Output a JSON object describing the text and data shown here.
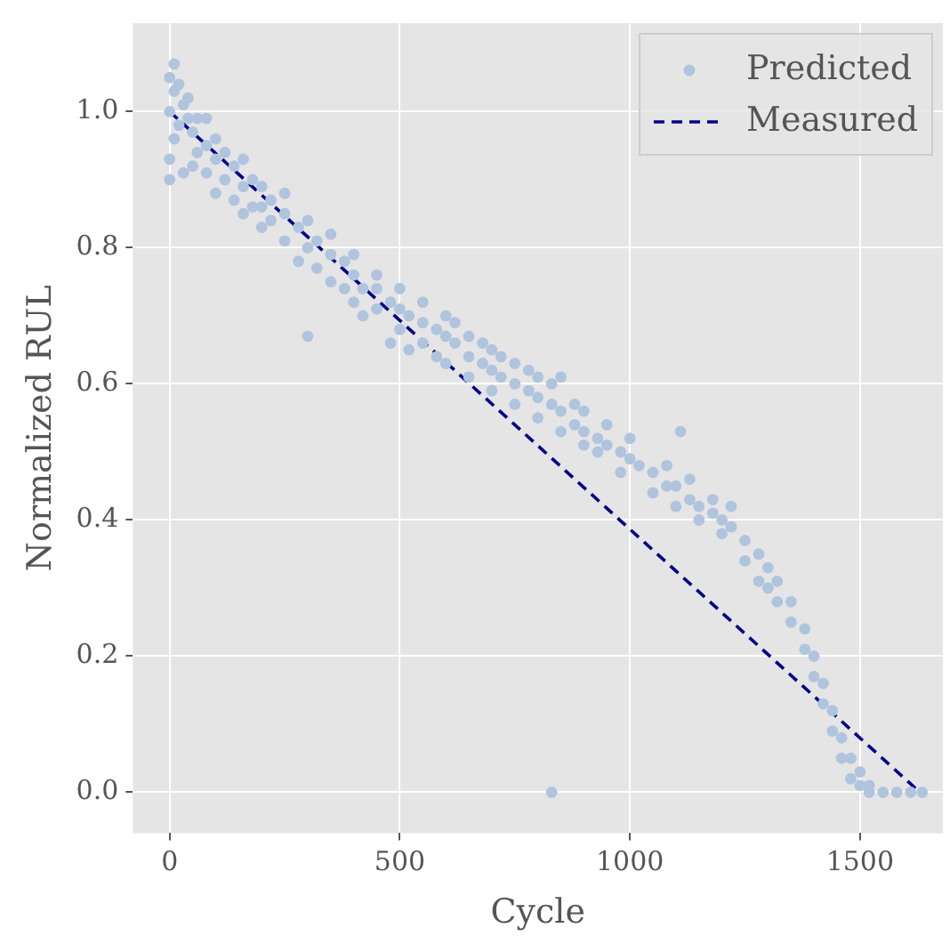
{
  "chart_data": {
    "type": "scatter",
    "xlabel": "Cycle",
    "ylabel": "Normalized RUL",
    "xlim": [
      -80,
      1680
    ],
    "ylim": [
      -0.06,
      1.13
    ],
    "xticks": [
      0,
      500,
      1000,
      1500
    ],
    "yticks": [
      {
        "value": 0,
        "label": "0.0"
      },
      0.2,
      0.4,
      0.6,
      0.8,
      {
        "value": 1,
        "label": "1.0"
      }
    ],
    "grid": true,
    "legend": "top right",
    "series": [
      {
        "name": "Predicted",
        "color": "#b0c4de",
        "marker": "circle",
        "x": [
          0,
          0,
          0,
          0,
          10,
          10,
          10,
          20,
          20,
          30,
          30,
          40,
          40,
          50,
          50,
          60,
          60,
          80,
          80,
          80,
          100,
          100,
          100,
          120,
          120,
          140,
          140,
          160,
          160,
          160,
          180,
          180,
          200,
          200,
          200,
          220,
          220,
          250,
          250,
          250,
          280,
          280,
          300,
          300,
          300,
          320,
          320,
          350,
          350,
          350,
          380,
          380,
          400,
          400,
          400,
          420,
          420,
          450,
          450,
          450,
          480,
          480,
          500,
          500,
          500,
          520,
          520,
          550,
          550,
          550,
          580,
          580,
          600,
          600,
          600,
          620,
          620,
          650,
          650,
          650,
          680,
          680,
          700,
          700,
          700,
          720,
          720,
          750,
          750,
          750,
          780,
          780,
          800,
          800,
          800,
          830,
          830,
          830,
          850,
          850,
          850,
          880,
          880,
          900,
          900,
          900,
          930,
          930,
          950,
          950,
          980,
          980,
          1000,
          1000,
          1020,
          1050,
          1050,
          1080,
          1080,
          1100,
          1100,
          1110,
          1130,
          1130,
          1150,
          1150,
          1180,
          1180,
          1200,
          1200,
          1220,
          1220,
          1250,
          1250,
          1280,
          1280,
          1300,
          1300,
          1320,
          1320,
          1350,
          1350,
          1380,
          1380,
          1400,
          1400,
          1420,
          1420,
          1440,
          1440,
          1460,
          1460,
          1480,
          1480,
          1500,
          1500,
          1520,
          1520,
          1550,
          1580,
          1610,
          1635
        ],
        "values": [
          1.05,
          1.0,
          0.93,
          0.9,
          1.07,
          1.03,
          0.96,
          1.04,
          0.98,
          1.01,
          0.91,
          0.99,
          1.02,
          0.97,
          0.92,
          0.99,
          0.94,
          0.95,
          0.91,
          0.99,
          0.93,
          0.88,
          0.96,
          0.94,
          0.9,
          0.92,
          0.87,
          0.89,
          0.85,
          0.93,
          0.9,
          0.86,
          0.86,
          0.83,
          0.89,
          0.87,
          0.84,
          0.85,
          0.81,
          0.88,
          0.83,
          0.78,
          0.8,
          0.67,
          0.84,
          0.81,
          0.77,
          0.79,
          0.75,
          0.82,
          0.78,
          0.74,
          0.76,
          0.79,
          0.72,
          0.74,
          0.7,
          0.74,
          0.71,
          0.76,
          0.72,
          0.66,
          0.71,
          0.68,
          0.74,
          0.7,
          0.65,
          0.69,
          0.66,
          0.72,
          0.68,
          0.64,
          0.67,
          0.63,
          0.7,
          0.66,
          0.69,
          0.64,
          0.61,
          0.67,
          0.63,
          0.66,
          0.62,
          0.59,
          0.65,
          0.61,
          0.64,
          0.6,
          0.57,
          0.63,
          0.59,
          0.62,
          0.58,
          0.55,
          0.61,
          0.57,
          0.0,
          0.6,
          0.56,
          0.61,
          0.53,
          0.54,
          0.57,
          0.53,
          0.51,
          0.56,
          0.52,
          0.5,
          0.51,
          0.54,
          0.5,
          0.47,
          0.49,
          0.52,
          0.48,
          0.47,
          0.44,
          0.45,
          0.48,
          0.45,
          0.42,
          0.53,
          0.43,
          0.46,
          0.42,
          0.4,
          0.41,
          0.43,
          0.4,
          0.38,
          0.39,
          0.42,
          0.37,
          0.34,
          0.35,
          0.31,
          0.33,
          0.3,
          0.31,
          0.28,
          0.28,
          0.25,
          0.24,
          0.21,
          0.2,
          0.17,
          0.16,
          0.13,
          0.12,
          0.09,
          0.08,
          0.05,
          0.05,
          0.02,
          0.03,
          0.01,
          0.01,
          0.0,
          0.0,
          0.0,
          0.0,
          0.0
        ]
      },
      {
        "name": "Measured",
        "type": "line",
        "color": "#00008b",
        "marker": "none",
        "line_style": "dashed",
        "x": [
          0,
          1630
        ],
        "values": [
          1.0,
          0.0
        ]
      }
    ]
  }
}
